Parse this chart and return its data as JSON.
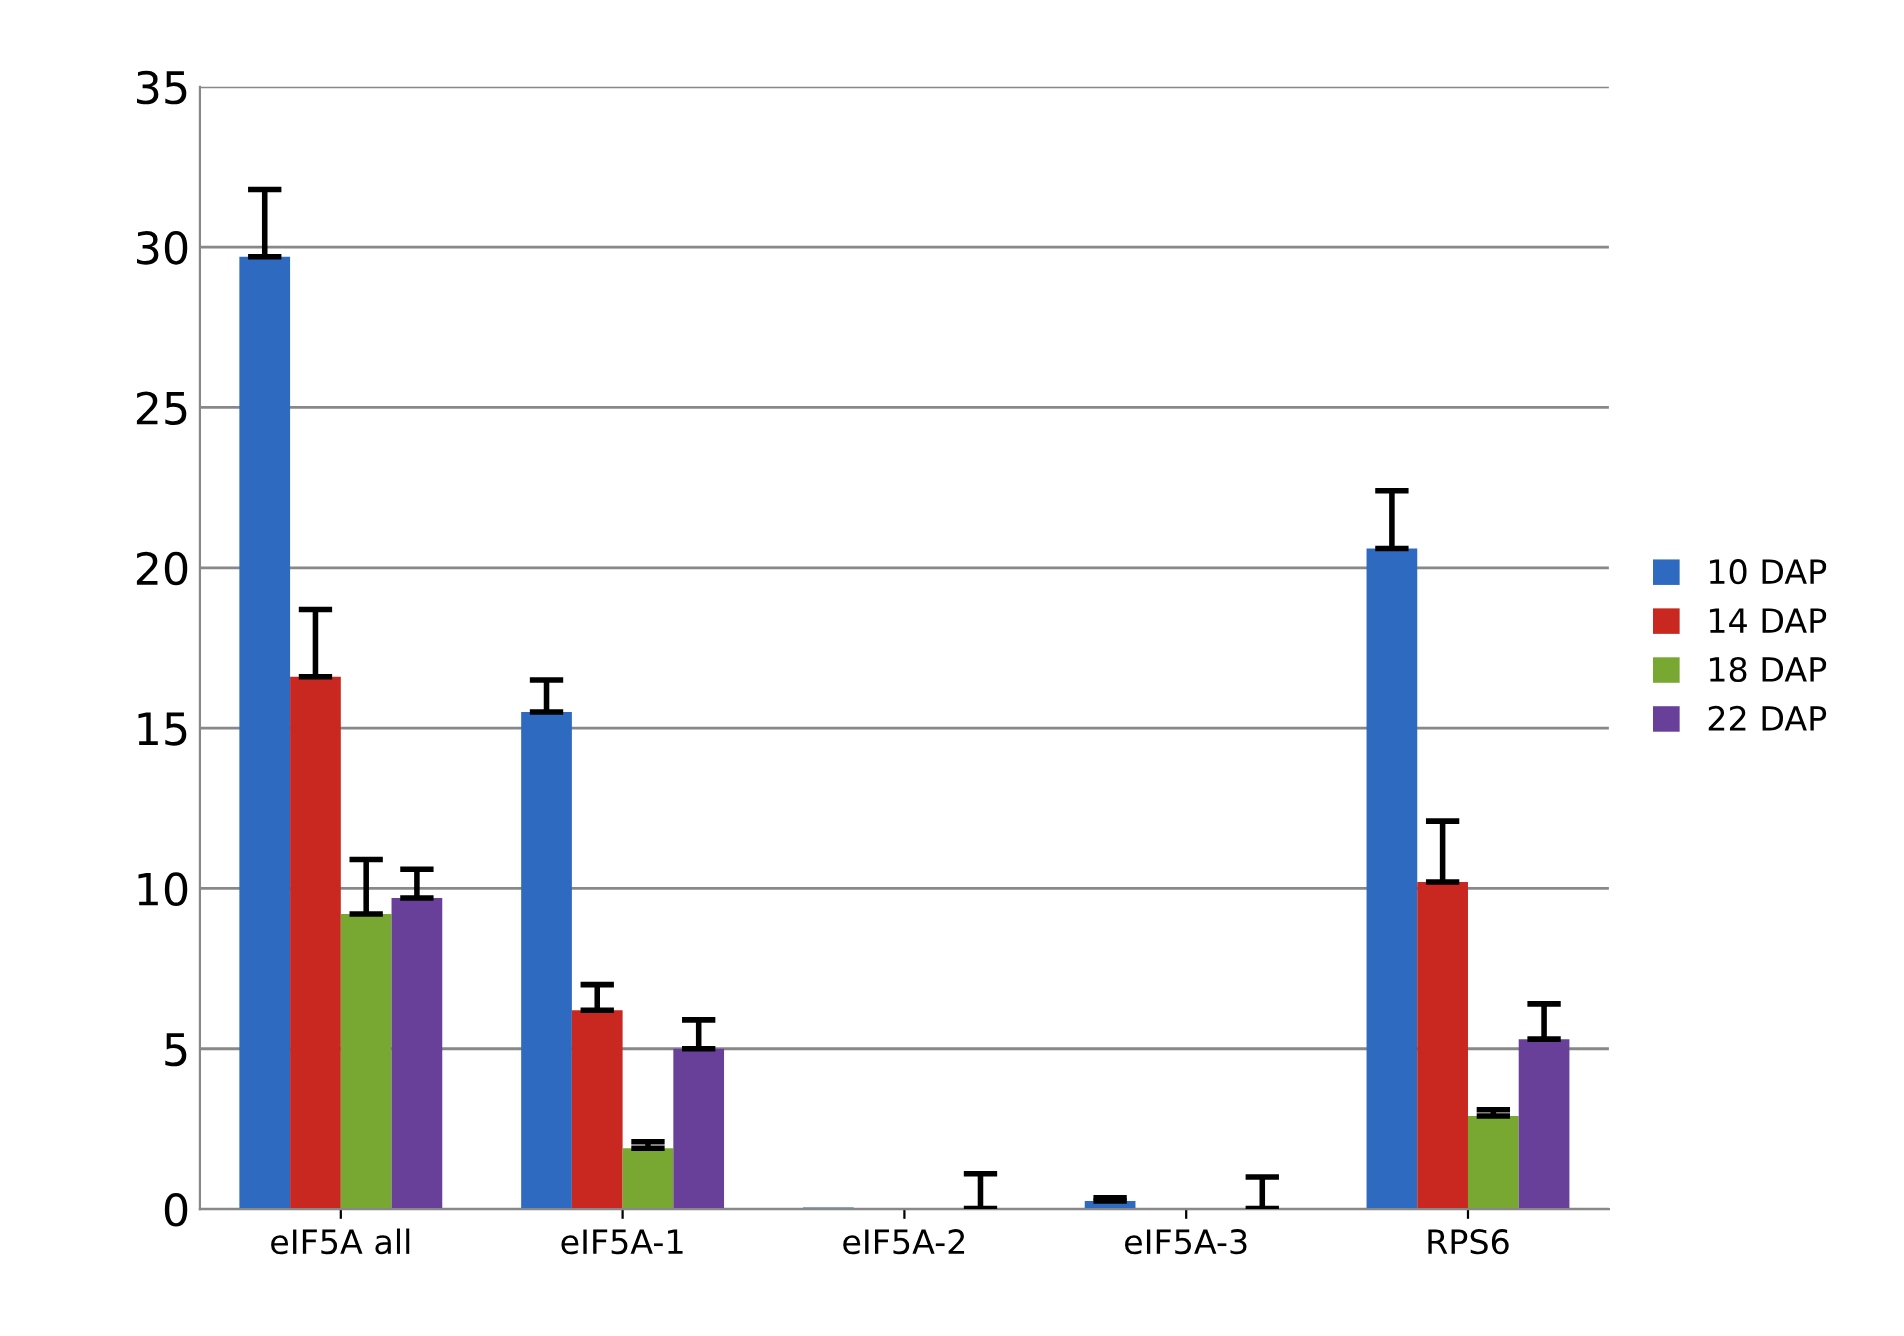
{
  "chart_data": {
    "type": "bar",
    "categories": [
      "eIF5A all",
      "eIF5A-1",
      "eIF5A-2",
      "eIF5A-3",
      "RPS6"
    ],
    "series": [
      {
        "name": "10 DAP",
        "color": "#2e6bc0",
        "values": [
          29.7,
          15.5,
          0.05,
          0.25,
          20.6
        ],
        "errors": [
          [
            29.7,
            31.8
          ],
          [
            15.5,
            16.5
          ],
          null,
          [
            0.25,
            0.35
          ],
          [
            20.6,
            22.4
          ]
        ]
      },
      {
        "name": "14 DAP",
        "color": "#c8281f",
        "values": [
          16.6,
          6.2,
          0,
          0,
          10.2
        ],
        "errors": [
          [
            16.6,
            18.7
          ],
          [
            6.2,
            7.0
          ],
          null,
          null,
          [
            10.2,
            12.1
          ]
        ]
      },
      {
        "name": "18 DAP",
        "color": "#79a832",
        "values": [
          9.2,
          1.9,
          0,
          0,
          2.9
        ],
        "errors": [
          [
            9.2,
            10.9
          ],
          [
            1.9,
            2.1
          ],
          null,
          null,
          [
            2.9,
            3.1
          ]
        ]
      },
      {
        "name": "22 DAP",
        "color": "#68409a",
        "values": [
          9.7,
          5.0,
          0.02,
          0.02,
          5.3
        ],
        "errors": [
          [
            9.7,
            10.6
          ],
          [
            5.0,
            5.9
          ],
          [
            0.02,
            1.1
          ],
          [
            0.02,
            1.0
          ],
          [
            5.3,
            6.4
          ]
        ]
      }
    ],
    "ylim": [
      0,
      35
    ],
    "yticks": [
      0,
      5,
      10,
      15,
      20,
      25,
      30,
      35
    ],
    "grid": "y",
    "legend": "right"
  }
}
